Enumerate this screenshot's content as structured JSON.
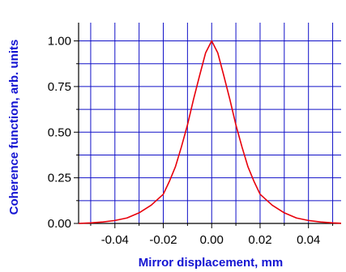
{
  "chart_data": {
    "type": "line",
    "xlabel": "Mirror displacement, mm",
    "ylabel": "Coherence function, arb. units",
    "xlim": [
      -0.055,
      0.0535
    ],
    "ylim": [
      0,
      1.1
    ],
    "grid": true,
    "x_gridlines": [
      -0.05,
      -0.04,
      -0.03,
      -0.02,
      -0.01,
      0.0,
      0.01,
      0.02,
      0.03,
      0.04,
      0.05
    ],
    "y_gridlines": [
      0.125,
      0.25,
      0.375,
      0.5,
      0.625,
      0.75,
      0.875,
      1.0
    ],
    "x_ticks": [
      {
        "value": -0.04,
        "label": "-0.04"
      },
      {
        "value": -0.02,
        "label": "-0.02"
      },
      {
        "value": 0.0,
        "label": "0.00"
      },
      {
        "value": 0.02,
        "label": "0.02"
      },
      {
        "value": 0.04,
        "label": "0.04"
      }
    ],
    "y_ticks": [
      {
        "value": 0.0,
        "label": "0.00"
      },
      {
        "value": 0.25,
        "label": "0.25"
      },
      {
        "value": 0.5,
        "label": "0.50"
      },
      {
        "value": 0.75,
        "label": "0.75"
      },
      {
        "value": 1.0,
        "label": "1.00"
      }
    ],
    "series": [
      {
        "color": "#e8000b",
        "x": [
          -0.055,
          -0.05,
          -0.045,
          -0.04,
          -0.035,
          -0.03,
          -0.025,
          -0.02,
          -0.0175,
          -0.015,
          -0.0125,
          -0.01,
          -0.0075,
          -0.005,
          -0.0025,
          0.0,
          0.0025,
          0.005,
          0.0075,
          0.01,
          0.0125,
          0.015,
          0.0175,
          0.02,
          0.025,
          0.03,
          0.035,
          0.04,
          0.045,
          0.05,
          0.0535
        ],
        "y": [
          0.0,
          0.003,
          0.008,
          0.016,
          0.03,
          0.058,
          0.1,
          0.16,
          0.23,
          0.31,
          0.42,
          0.54,
          0.68,
          0.81,
          0.935,
          1.0,
          0.935,
          0.81,
          0.68,
          0.54,
          0.42,
          0.31,
          0.23,
          0.16,
          0.1,
          0.058,
          0.03,
          0.016,
          0.008,
          0.003,
          0.001
        ]
      }
    ]
  },
  "colors": {
    "axis": "#000000",
    "grid": "#1010c8",
    "label": "#1414d2",
    "curve": "#e8000b"
  }
}
